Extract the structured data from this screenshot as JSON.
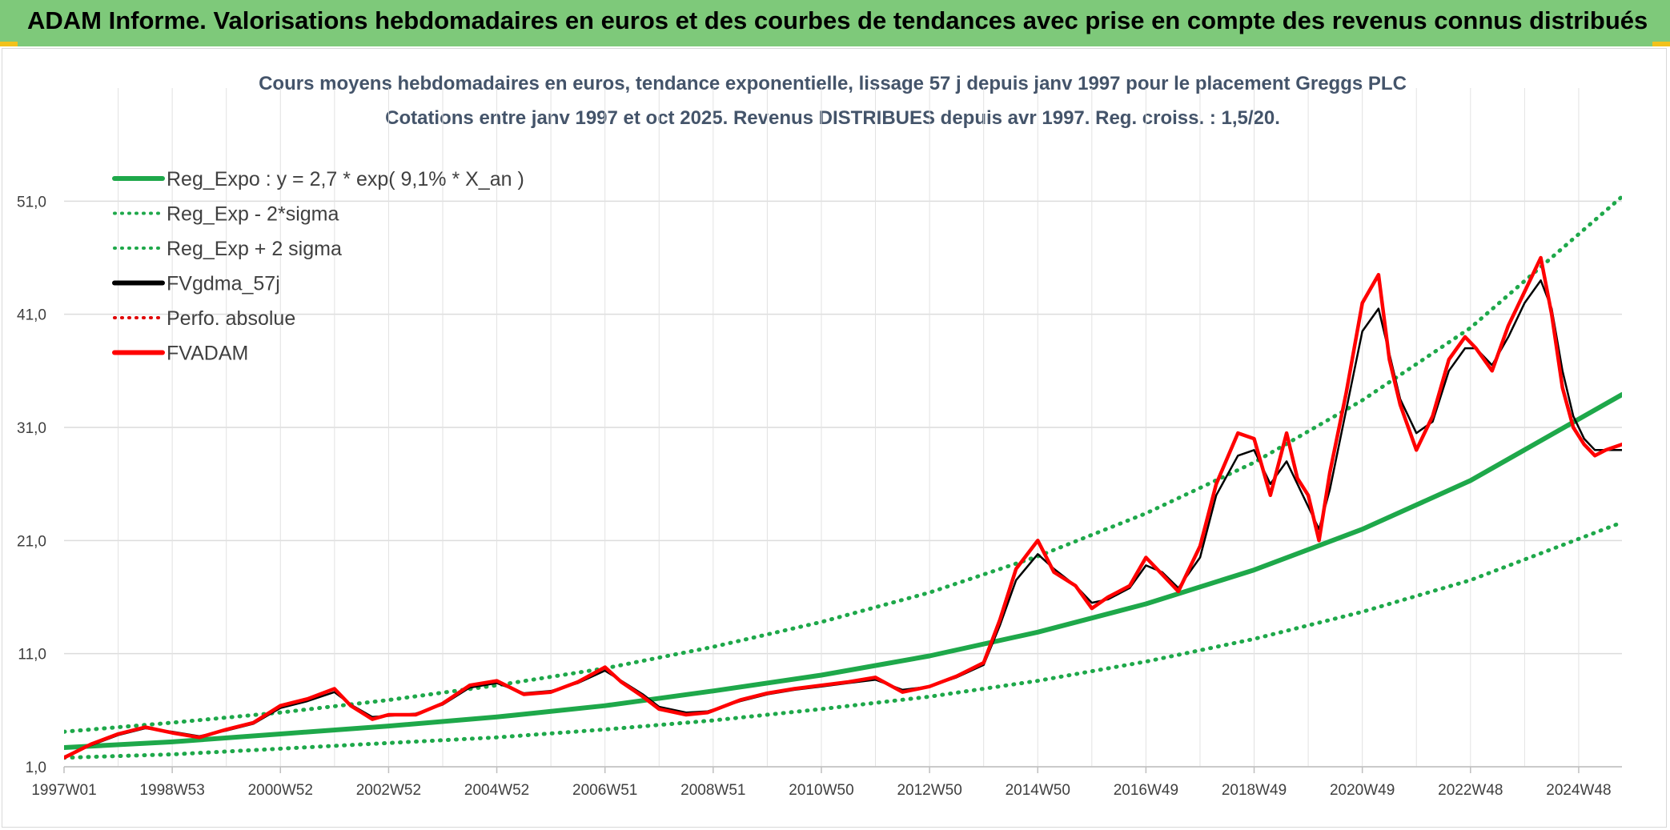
{
  "header": {
    "title": "ADAM Informe. Valorisations hebdomadaires en euros et des courbes de tendances avec prise en compte des revenus connus distribués"
  },
  "chart_data": {
    "type": "line",
    "title": "Cours moyens hebdomadaires en euros, tendance exponentielle, lissage 57 j depuis janv 1997 pour le placement Greggs PLC",
    "subtitle": "Cotations entre janv 1997 et oct 2025. Revenus DISTRIBUES depuis avr 1997. Reg. croiss. : 1,5/20.",
    "xlabel": "",
    "ylabel": "",
    "x_tick_labels": [
      "1997W01",
      "1998W53",
      "2000W52",
      "2002W52",
      "2004W52",
      "2006W51",
      "2008W51",
      "2010W50",
      "2012W50",
      "2014W50",
      "2016W49",
      "2018W49",
      "2020W49",
      "2022W48",
      "2024W48"
    ],
    "y_tick_labels": [
      "1,0",
      "11,0",
      "21,0",
      "31,0",
      "41,0",
      "51,0"
    ],
    "y_ticks": [
      1,
      11,
      21,
      31,
      41,
      51
    ],
    "xlim": [
      1997.0,
      2025.8
    ],
    "ylim": [
      1,
      61
    ],
    "grid": true,
    "legend_position": "top-left",
    "legend": [
      {
        "label": "Reg_Expo : y = 2,7 * exp( 9,1% *  X_an )",
        "color": "#1ea84a",
        "style": "solid"
      },
      {
        "label": "Reg_Exp - 2*sigma",
        "color": "#1ea84a",
        "style": "dotted"
      },
      {
        "label": "Reg_Exp + 2 sigma",
        "color": "#1ea84a",
        "style": "dotted"
      },
      {
        "label": "FVgdma_57j",
        "color": "#000000",
        "style": "solid"
      },
      {
        "label": "Perfo. absolue",
        "color": "#e00000",
        "style": "dotted"
      },
      {
        "label": "FVADAM",
        "color": "#ff0000",
        "style": "solid"
      }
    ],
    "series": [
      {
        "name": "FVADAM",
        "color": "#ff0000",
        "x": [
          1997.0,
          1997.5,
          1998.0,
          1998.5,
          1999.0,
          1999.5,
          2000.0,
          2000.5,
          2001.0,
          2001.5,
          2002.0,
          2002.3,
          2002.7,
          2003.0,
          2003.5,
          2004.0,
          2004.5,
          2005.0,
          2005.5,
          2006.0,
          2006.5,
          2007.0,
          2007.3,
          2007.7,
          2008.0,
          2008.5,
          2008.9,
          2009.5,
          2010.0,
          2010.5,
          2011.0,
          2011.5,
          2012.0,
          2012.5,
          2013.0,
          2013.5,
          2014.0,
          2014.3,
          2014.6,
          2015.0,
          2015.3,
          2015.7,
          2016.0,
          2016.3,
          2016.7,
          2017.0,
          2017.3,
          2017.6,
          2018.0,
          2018.3,
          2018.7,
          2019.0,
          2019.3,
          2019.6,
          2019.8,
          2020.0,
          2020.2,
          2020.4,
          2020.7,
          2021.0,
          2021.3,
          2021.5,
          2021.7,
          2022.0,
          2022.3,
          2022.6,
          2022.9,
          2023.1,
          2023.4,
          2023.7,
          2024.0,
          2024.3,
          2024.5,
          2024.7,
          2024.9,
          2025.1,
          2025.3,
          2025.5,
          2025.8
        ],
        "values": [
          1.8,
          3.0,
          3.9,
          4.5,
          4.0,
          3.6,
          4.3,
          4.9,
          6.4,
          7.0,
          7.9,
          6.4,
          5.2,
          5.6,
          5.6,
          6.6,
          8.2,
          8.6,
          7.4,
          7.6,
          8.5,
          9.8,
          8.5,
          7.2,
          6.1,
          5.6,
          5.8,
          6.9,
          7.5,
          7.9,
          8.2,
          8.5,
          8.9,
          7.6,
          8.1,
          9.0,
          10.2,
          14.0,
          18.5,
          21.0,
          18.2,
          17.0,
          15.0,
          16.0,
          17.0,
          19.5,
          18.0,
          16.5,
          20.5,
          26.0,
          30.5,
          30.0,
          25.0,
          30.5,
          26.5,
          25.0,
          21.0,
          27.0,
          34.0,
          42.0,
          44.5,
          37.0,
          33.0,
          29.0,
          32.0,
          37.0,
          39.0,
          38.0,
          36.0,
          40.0,
          43.0,
          46.0,
          41.0,
          34.5,
          31.0,
          29.5,
          28.5,
          29.0,
          29.5
        ]
      },
      {
        "name": "FVgdma_57j",
        "color": "#000000",
        "x": [
          1997.0,
          1997.5,
          1998.0,
          1998.5,
          1999.0,
          1999.5,
          2000.0,
          2000.5,
          2001.0,
          2001.5,
          2002.0,
          2002.3,
          2002.7,
          2003.0,
          2003.5,
          2004.0,
          2004.5,
          2005.0,
          2005.5,
          2006.0,
          2006.5,
          2007.0,
          2007.3,
          2007.7,
          2008.0,
          2008.5,
          2008.9,
          2009.5,
          2010.0,
          2010.5,
          2011.0,
          2011.5,
          2012.0,
          2012.5,
          2013.0,
          2013.5,
          2014.0,
          2014.3,
          2014.6,
          2015.0,
          2015.3,
          2015.7,
          2016.0,
          2016.3,
          2016.7,
          2017.0,
          2017.3,
          2017.6,
          2018.0,
          2018.3,
          2018.7,
          2019.0,
          2019.3,
          2019.6,
          2019.8,
          2020.0,
          2020.2,
          2020.4,
          2020.7,
          2021.0,
          2021.3,
          2021.5,
          2021.7,
          2022.0,
          2022.3,
          2022.6,
          2022.9,
          2023.1,
          2023.4,
          2023.7,
          2024.0,
          2024.3,
          2024.5,
          2024.7,
          2024.9,
          2025.1,
          2025.3,
          2025.5,
          2025.8
        ],
        "values": [
          1.9,
          2.9,
          3.8,
          4.4,
          4.1,
          3.7,
          4.2,
          4.8,
          6.2,
          6.8,
          7.6,
          6.5,
          5.4,
          5.5,
          5.7,
          6.5,
          8.0,
          8.4,
          7.5,
          7.7,
          8.4,
          9.5,
          8.6,
          7.4,
          6.3,
          5.8,
          5.9,
          6.8,
          7.4,
          7.8,
          8.1,
          8.4,
          8.7,
          7.8,
          8.1,
          8.9,
          10.0,
          13.5,
          17.5,
          19.8,
          18.5,
          17.0,
          15.5,
          15.8,
          16.8,
          18.8,
          18.2,
          16.8,
          19.5,
          25.0,
          28.5,
          29.0,
          26.0,
          28.0,
          26.0,
          24.0,
          22.0,
          25.5,
          32.5,
          39.5,
          41.5,
          37.5,
          33.5,
          30.5,
          31.5,
          36.0,
          38.0,
          38.0,
          36.5,
          39.0,
          42.0,
          44.0,
          41.5,
          36.0,
          32.0,
          30.0,
          29.0,
          29.0,
          29.0
        ]
      },
      {
        "name": "Reg_Expo : y = 2,7 * exp( 9,1% *  X_an )",
        "color": "#1ea84a",
        "x": [
          1997.0,
          1999.0,
          2001.0,
          2003.0,
          2005.0,
          2007.0,
          2009.0,
          2011.0,
          2013.0,
          2015.0,
          2017.0,
          2019.0,
          2021.0,
          2023.0,
          2025.8
        ],
        "values": [
          2.7,
          3.2,
          3.9,
          4.6,
          5.4,
          6.4,
          7.7,
          9.1,
          10.8,
          12.9,
          15.4,
          18.4,
          22.0,
          26.3,
          33.9
        ]
      },
      {
        "name": "Reg_Exp - 2*sigma",
        "color": "#1ea84a",
        "x": [
          1997.0,
          1999.0,
          2001.0,
          2003.0,
          2005.0,
          2007.0,
          2009.0,
          2011.0,
          2013.0,
          2015.0,
          2017.0,
          2019.0,
          2021.0,
          2023.0,
          2025.8
        ],
        "values": [
          1.8,
          2.1,
          2.6,
          3.1,
          3.6,
          4.3,
          5.1,
          6.1,
          7.2,
          8.6,
          10.3,
          12.3,
          14.7,
          17.5,
          22.6
        ]
      },
      {
        "name": "Reg_Exp + 2 sigma",
        "color": "#1ea84a",
        "x": [
          1997.0,
          1999.0,
          2001.0,
          2003.0,
          2005.0,
          2007.0,
          2009.0,
          2011.0,
          2013.0,
          2015.0,
          2017.0,
          2019.0,
          2021.0,
          2023.0,
          2025.8
        ],
        "values": [
          4.1,
          4.9,
          5.8,
          6.9,
          8.2,
          9.7,
          11.6,
          13.8,
          16.4,
          19.6,
          23.4,
          27.9,
          33.4,
          39.8,
          51.4
        ]
      }
    ]
  }
}
